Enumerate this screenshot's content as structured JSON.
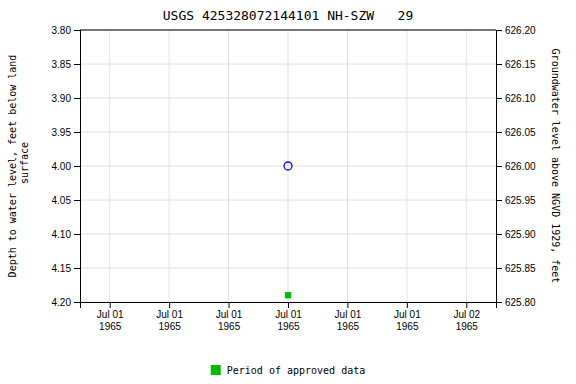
{
  "chart_data": {
    "type": "scatter",
    "title": "USGS 425328072144101 NH-SZW   29",
    "y_label": "Depth to water level, feet below land\n surface",
    "y2_label": "Groundwater level above NGVD 1929, feet",
    "categories": [
      "Jul 01\n1965",
      "Jul 01\n1965",
      "Jul 01\n1965",
      "Jul 01\n1965",
      "Jul 01\n1965",
      "Jul 01\n1965",
      "Jul 02\n1965"
    ],
    "series": [
      {
        "color": "blue",
        "marker": "open-circle",
        "values": [
          null,
          null,
          null,
          4.0,
          null,
          null,
          null
        ]
      },
      {
        "name": "Period of approved data",
        "color": "#00bb00",
        "marker": "square",
        "values": [
          null,
          null,
          null,
          4.19,
          null,
          null,
          null
        ]
      }
    ],
    "ylim": [
      4.2,
      3.8
    ],
    "yticks": [
      {
        "value": 3.8,
        "label": "3.80"
      },
      {
        "value": 3.85,
        "label": "3.85"
      },
      {
        "value": 3.9,
        "label": "3.90"
      },
      {
        "value": 3.95,
        "label": "3.95"
      },
      {
        "value": 4.0,
        "label": "4.00"
      },
      {
        "value": 4.05,
        "label": "4.05"
      },
      {
        "value": 4.1,
        "label": "4.10"
      },
      {
        "value": 4.15,
        "label": "4.15"
      },
      {
        "value": 4.2,
        "label": "4.20"
      }
    ],
    "y2lim": [
      625.8,
      626.2
    ],
    "y2ticks": [
      {
        "value": 626.2,
        "label": "626.20"
      },
      {
        "value": 626.15,
        "label": "626.15"
      },
      {
        "value": 626.1,
        "label": "626.10"
      },
      {
        "value": 626.05,
        "label": "626.05"
      },
      {
        "value": 626.0,
        "label": "626.00"
      },
      {
        "value": 625.95,
        "label": "625.95"
      },
      {
        "value": 625.9,
        "label": "625.90"
      },
      {
        "value": 625.85,
        "label": "625.85"
      },
      {
        "value": 625.8,
        "label": "625.80"
      }
    ],
    "grid": true,
    "legend": "bottom"
  }
}
